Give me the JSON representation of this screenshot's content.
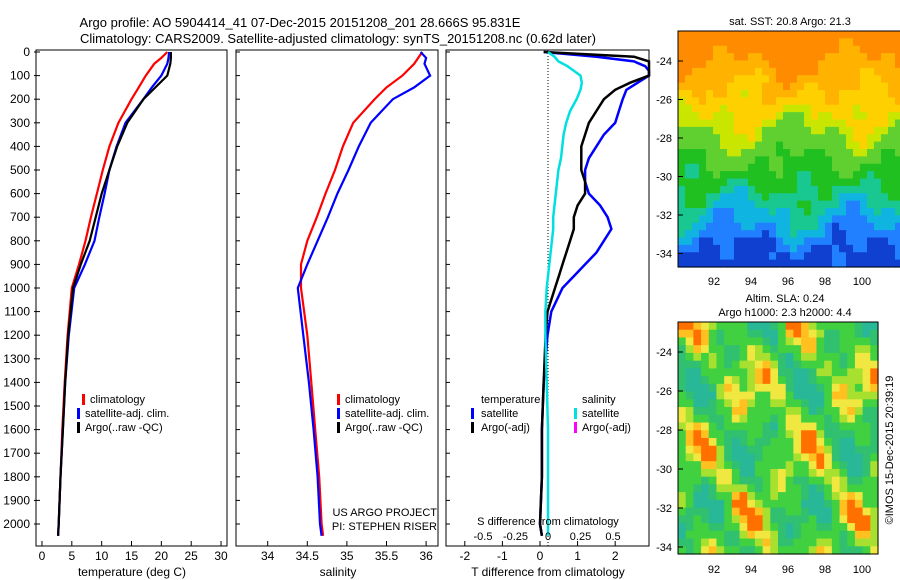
{
  "title_line1": "Argo profile: AO 5904414_41 07-Dec-2015 20151208_201 28.666S 95.831E",
  "title_line2": "Climatology: CARS2009. Satellite-adjusted climatology: synTS_20151208.nc (0.62d later)",
  "footer_credit": "©IMOS 15-Dec-2015 20:39:19",
  "chart_data": [
    {
      "type": "line",
      "panel": "temperature",
      "xlabel": "temperature (deg C)",
      "xlim": [
        -1,
        31
      ],
      "xticks": [
        "0",
        "5",
        "10",
        "15",
        "20",
        "25",
        "30"
      ],
      "ylim": [
        2070,
        0
      ],
      "yticks": [
        "0",
        "100",
        "200",
        "300",
        "400",
        "500",
        "600",
        "700",
        "800",
        "900",
        "1000",
        "1100",
        "1200",
        "1300",
        "1400",
        "1500",
        "1600",
        "1700",
        "1800",
        "1900",
        "2000"
      ],
      "legend": [
        "climatology",
        "satellite-adj. clim.",
        "Argo(..raw -QC)"
      ],
      "series": [
        {
          "name": "climatology",
          "color": "#ff0000",
          "depth": [
            0,
            25,
            50,
            100,
            150,
            200,
            300,
            400,
            500,
            600,
            700,
            800,
            900,
            1000,
            1200,
            1400,
            1600,
            1800,
            2000,
            2050
          ],
          "values": [
            21.0,
            20.0,
            18.8,
            17.4,
            16.2,
            15.0,
            12.8,
            11.3,
            10.2,
            9.2,
            8.2,
            7.3,
            6.2,
            5.0,
            4.3,
            3.8,
            3.4,
            3.1,
            2.8,
            2.7
          ]
        },
        {
          "name": "satellite-adj. clim.",
          "color": "#0000ff",
          "depth": [
            0,
            25,
            50,
            100,
            150,
            200,
            300,
            400,
            500,
            600,
            700,
            800,
            900,
            1000,
            1200,
            1400,
            1600,
            1800,
            2000,
            2050
          ],
          "values": [
            21.3,
            21.2,
            21.0,
            20.0,
            18.4,
            17.0,
            14.0,
            12.5,
            11.3,
            10.5,
            9.6,
            8.8,
            7.2,
            5.4,
            4.5,
            3.9,
            3.5,
            3.1,
            2.8,
            2.7
          ]
        },
        {
          "name": "Argo(..raw -QC)",
          "color": "#000000",
          "depth": [
            0,
            25,
            50,
            100,
            150,
            200,
            300,
            400,
            500,
            600,
            700,
            800,
            900,
            1000,
            1200,
            1400,
            1600,
            1800,
            2000,
            2050
          ],
          "values": [
            21.6,
            21.6,
            21.5,
            21.0,
            19.0,
            17.0,
            14.3,
            12.6,
            11.3,
            10.0,
            9.0,
            8.0,
            6.5,
            5.2,
            4.4,
            3.9,
            3.5,
            3.1,
            2.8,
            2.7
          ]
        }
      ]
    },
    {
      "type": "line",
      "panel": "salinity",
      "xlabel": "salinity",
      "xlim": [
        33.6,
        36.15
      ],
      "xticks": [
        "34",
        "34.5",
        "35",
        "35.5",
        "36"
      ],
      "ylim": [
        2070,
        0
      ],
      "legend": [
        "climatology",
        "satellite-adj. clim.",
        "Argo(..raw -QC)"
      ],
      "annotation_line1": "US ARGO PROJECT",
      "annotation_line2": "PI: STEPHEN RISER",
      "series": [
        {
          "name": "climatology",
          "color": "#ff0000",
          "depth": [
            0,
            25,
            50,
            100,
            150,
            200,
            300,
            400,
            500,
            600,
            700,
            800,
            900,
            1000,
            1200,
            1400,
            1600,
            1800,
            2000,
            2050
          ],
          "values": [
            35.95,
            35.9,
            35.85,
            35.7,
            35.5,
            35.35,
            35.08,
            34.95,
            34.85,
            34.73,
            34.62,
            34.5,
            34.42,
            34.42,
            34.5,
            34.55,
            34.6,
            34.65,
            34.68,
            34.7
          ]
        },
        {
          "name": "satellite-adj. clim.",
          "color": "#0000ff",
          "depth": [
            0,
            25,
            50,
            100,
            150,
            200,
            300,
            400,
            500,
            600,
            700,
            800,
            900,
            1000,
            1200,
            1400,
            1600,
            1800,
            2000,
            2050
          ],
          "values": [
            35.93,
            36.0,
            35.98,
            36.05,
            35.85,
            35.58,
            35.3,
            35.15,
            35.02,
            34.88,
            34.76,
            34.63,
            34.5,
            34.38,
            34.45,
            34.52,
            34.58,
            34.63,
            34.66,
            34.68
          ]
        },
        {
          "name": "Argo(..raw -QC)",
          "color": "#000000",
          "depth": [],
          "values": []
        }
      ]
    },
    {
      "type": "line",
      "panel": "difference",
      "xlabel": "T difference from climatology",
      "xlim_T": [
        -2.5,
        2.9
      ],
      "xticks_T": [
        "-2",
        "-1",
        "0",
        "1",
        "2"
      ],
      "xlabel_S": "S difference from climatology",
      "xticks_S": [
        "-0.5",
        "-0.25",
        "0",
        "0.25",
        "0.5"
      ],
      "ylim": [
        2070,
        0
      ],
      "legend_temperature_title": "temperature",
      "legend_temperature": [
        "satellite",
        "Argo(-adj)"
      ],
      "legend_salinity_title": "salinity",
      "legend_salinity": [
        "satellite",
        "Argo(-adj)"
      ],
      "series": [
        {
          "name": "T satellite",
          "color": "#0000ff",
          "depth": [
            0,
            20,
            40,
            60,
            80,
            100,
            130,
            160,
            200,
            250,
            300,
            350,
            400,
            450,
            500,
            550,
            600,
            650,
            700,
            750,
            800,
            850,
            900,
            950,
            1000,
            1100,
            1200,
            1400,
            1600,
            1800,
            2000,
            2050
          ],
          "values": [
            0.1,
            1.5,
            2.5,
            2.8,
            3.0,
            2.9,
            2.6,
            2.3,
            2.2,
            2.1,
            2.0,
            1.7,
            1.5,
            1.3,
            1.2,
            1.2,
            1.3,
            1.6,
            1.8,
            1.9,
            1.7,
            1.5,
            1.2,
            0.9,
            0.6,
            0.3,
            0.2,
            0.1,
            0.05,
            0.05,
            0.0,
            0.05
          ]
        },
        {
          "name": "T Argo(-adj)",
          "color": "#000000",
          "depth": [
            0,
            20,
            40,
            60,
            80,
            100,
            130,
            160,
            200,
            250,
            300,
            350,
            400,
            450,
            500,
            550,
            600,
            650,
            700,
            750,
            800,
            850,
            900,
            950,
            1000,
            1100,
            1200,
            1400,
            1600,
            1800,
            2000,
            2050
          ],
          "values": [
            0.1,
            2.5,
            2.9,
            3.0,
            3.0,
            3.0,
            2.4,
            2.0,
            1.7,
            1.5,
            1.3,
            1.2,
            1.1,
            1.1,
            1.1,
            1.2,
            1.2,
            1.0,
            0.9,
            0.9,
            0.8,
            0.7,
            0.6,
            0.5,
            0.4,
            0.2,
            0.15,
            0.1,
            0.05,
            0.05,
            0.0,
            0.05
          ]
        },
        {
          "name": "S satellite",
          "color": "#00e0e0",
          "depth": [
            0,
            20,
            40,
            60,
            80,
            100,
            130,
            160,
            200,
            250,
            300,
            350,
            400,
            450,
            500,
            550,
            600,
            650,
            700,
            750,
            800,
            850,
            900,
            950,
            1000,
            1100,
            1200,
            1400,
            1600,
            1800,
            2000,
            2050
          ],
          "values": [
            0.0,
            0.05,
            0.08,
            0.15,
            0.2,
            0.25,
            0.26,
            0.25,
            0.22,
            0.17,
            0.14,
            0.12,
            0.11,
            0.1,
            0.08,
            0.07,
            0.06,
            0.05,
            0.04,
            0.04,
            0.03,
            0.02,
            0.01,
            0.0,
            -0.01,
            -0.02,
            -0.02,
            -0.01,
            0.0,
            0.0,
            0.0,
            0.0
          ]
        }
      ]
    }
  ],
  "maps": [
    {
      "name": "sst-map",
      "title": "sat. SST: 20.8  Argo: 21.3",
      "xticks": [
        "92",
        "94",
        "96",
        "98",
        "100"
      ],
      "yticks": [
        "-24",
        "-26",
        "-28",
        "-30",
        "-32",
        "-34"
      ]
    },
    {
      "name": "sla-map",
      "title_line1": "Altim. SLA: 0.24",
      "title_line2": "Argo h1000: 2.3 h2000: 4.4",
      "xticks": [
        "92",
        "94",
        "96",
        "98",
        "100"
      ],
      "yticks": [
        "-24",
        "-26",
        "-28",
        "-30",
        "-32",
        "-34"
      ]
    }
  ]
}
